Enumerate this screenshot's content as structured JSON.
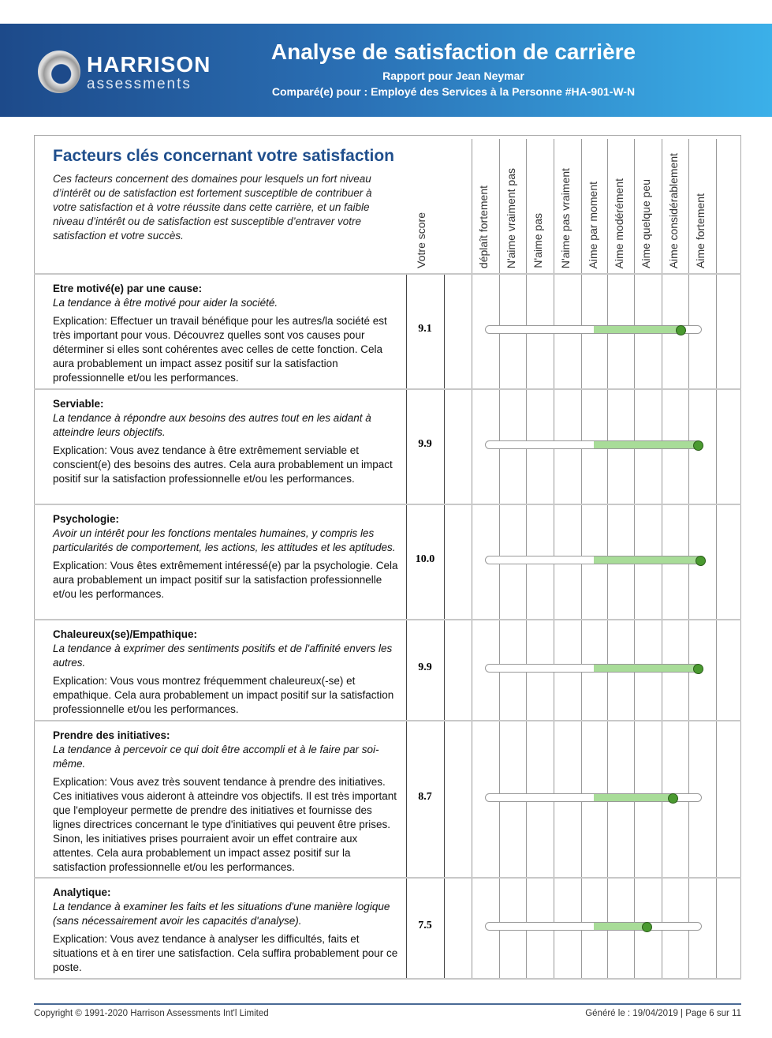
{
  "header": {
    "logo_top": "HARRISON",
    "logo_bottom": "assessments",
    "title": "Analyse de satisfaction de carrière",
    "subtitle": "Rapport pour Jean Neymar",
    "compared": "Comparé(e) pour : Employé des Services à la Personne #HA-901-W-N",
    "colors": {
      "band_start": "#1d4a8a",
      "band_end": "#3bb0e9",
      "fill": "#a8dc98",
      "dot": "#4a9a30"
    }
  },
  "section": {
    "title": "Facteurs clés concernant votre satisfaction",
    "description": "Ces facteurs concernent des domaines pour lesquels un fort niveau d’intérêt ou de satisfaction est fortement susceptible de contribuer à votre satisfaction et à votre réussite dans cette carrière, et un faible niveau d’intérêt ou de satisfaction est susceptible d’entraver votre satisfaction et votre succès."
  },
  "columns": {
    "score": "Votre score",
    "scale": [
      "déplaît fortement",
      "N'aime vraiment pas",
      "N'aime pas",
      "N'aime pas vraiment",
      "Aime par moment",
      "Aime modérément",
      "Aime quelque peu",
      "Aime considérablement",
      "Aime fortement"
    ]
  },
  "factors": [
    {
      "title": "Etre motivé(e) par une cause:",
      "tendency": "La tendance à être motivé pour aider la société.",
      "explanation": "Explication: Effectuer un travail bénéfique pour les autres/la société est très important pour vous. Découvrez quelles sont vos causes pour déterminer si elles sont cohérentes avec celles de cette fonction. Cela aura probablement un impact assez positif sur la satisfaction professionnelle et/ou les performances.",
      "score": "9.1",
      "value": 9.1
    },
    {
      "title": "Serviable:",
      "tendency": "La tendance à répondre aux besoins des autres tout en les aidant à atteindre leurs objectifs.",
      "explanation": "Explication: Vous avez tendance à être extrêmement serviable et conscient(e) des besoins des autres. Cela aura probablement un impact positif sur la satisfaction professionnelle et/ou les performances.",
      "score": "9.9",
      "value": 9.9
    },
    {
      "title": "Psychologie:",
      "tendency": "Avoir un intérêt pour les fonctions mentales humaines, y compris les particularités de comportement, les actions, les attitudes et les aptitudes.",
      "explanation": "Explication: Vous êtes extrêmement intéressé(e) par la psychologie. Cela aura probablement un impact positif sur la satisfaction professionnelle et/ou les performances.",
      "score": "10.0",
      "value": 10.0
    },
    {
      "title": "Chaleureux(se)/Empathique:",
      "tendency": "La tendance à exprimer des sentiments positifs et de l'affinité envers les autres.",
      "explanation": "Explication: Vous vous montrez fréquemment chaleureux(-se) et empathique. Cela aura probablement un impact positif sur la satisfaction professionnelle et/ou les performances.",
      "score": "9.9",
      "value": 9.9
    },
    {
      "title": "Prendre des initiatives:",
      "tendency": "La tendance à percevoir ce qui doit être accompli et à le faire par soi-même.",
      "explanation": "Explication: Vous avez très souvent tendance à prendre des initiatives. Ces initiatives vous aideront à atteindre vos objectifs. Il est très important que l'employeur permette de prendre des initiatives et fournisse des lignes directrices concernant le type d'initiatives qui peuvent être prises. Sinon, les initiatives prises pourraient avoir un effet contraire aux attentes. Cela aura probablement un impact assez positif sur la satisfaction professionnelle et/ou les performances.",
      "score": "8.7",
      "value": 8.7
    },
    {
      "title": "Analytique:",
      "tendency": "La tendance à examiner les faits et les situations d'une manière logique (sans nécessairement avoir les capacités d'analyse).",
      "explanation": "Explication: Vous avez tendance à analyser les difficultés, faits et situations et à en tirer une satisfaction. Cela suffira probablement pour ce poste.",
      "score": "7.5",
      "value": 7.5
    }
  ],
  "footer": {
    "copyright": "Copyright © 1991-2020 Harrison Assessments Int'l Limited",
    "generated": "Généré le : 19/04/2019 | Page 6 sur 11"
  }
}
